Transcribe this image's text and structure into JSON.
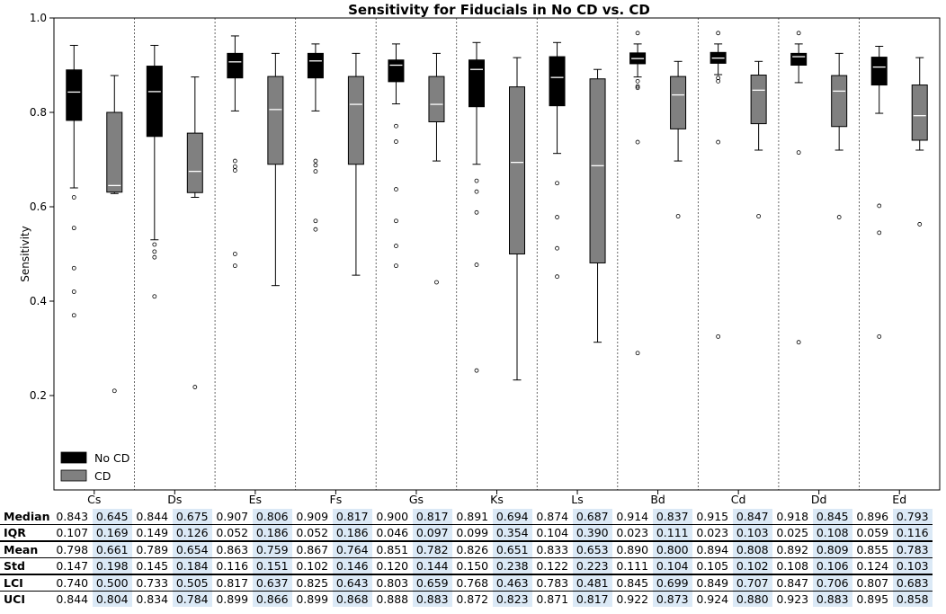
{
  "chart_data": {
    "type": "box",
    "title": "Sensitivity for Fiducials in No CD vs. CD",
    "xlabel": "",
    "ylabel": "Sensitivity",
    "ylim": [
      0.0,
      1.0
    ],
    "yticks": [
      0.2,
      0.4,
      0.6,
      0.8,
      1.0
    ],
    "grid": false,
    "legend_position": "bottom-left",
    "categories": [
      "Cs",
      "Ds",
      "Es",
      "Fs",
      "Gs",
      "Ks",
      "Ls",
      "Bd",
      "Cd",
      "Dd",
      "Ed"
    ],
    "series": [
      {
        "name": "No CD",
        "color": "#000000",
        "median_color": "#ffffff",
        "boxes": [
          {
            "q1": 0.783,
            "median": 0.843,
            "q3": 0.89,
            "whislo": 0.64,
            "whishi": 0.942,
            "fliers": [
              0.62,
              0.555,
              0.47,
              0.42,
              0.37
            ]
          },
          {
            "q1": 0.749,
            "median": 0.844,
            "q3": 0.898,
            "whislo": 0.53,
            "whishi": 0.942,
            "fliers": [
              0.52,
              0.505,
              0.493,
              0.41
            ]
          },
          {
            "q1": 0.873,
            "median": 0.907,
            "q3": 0.925,
            "whislo": 0.803,
            "whishi": 0.962,
            "fliers": [
              0.697,
              0.685,
              0.677,
              0.5,
              0.475
            ]
          },
          {
            "q1": 0.873,
            "median": 0.909,
            "q3": 0.925,
            "whislo": 0.803,
            "whishi": 0.945,
            "fliers": [
              0.697,
              0.688,
              0.675,
              0.57,
              0.552
            ]
          },
          {
            "q1": 0.865,
            "median": 0.9,
            "q3": 0.911,
            "whislo": 0.818,
            "whishi": 0.945,
            "fliers": [
              0.771,
              0.738,
              0.637,
              0.57,
              0.517,
              0.475
            ]
          },
          {
            "q1": 0.812,
            "median": 0.891,
            "q3": 0.911,
            "whislo": 0.69,
            "whishi": 0.948,
            "fliers": [
              0.655,
              0.632,
              0.588,
              0.477,
              0.253
            ]
          },
          {
            "q1": 0.814,
            "median": 0.874,
            "q3": 0.918,
            "whislo": 0.713,
            "whishi": 0.948,
            "fliers": [
              0.65,
              0.578,
              0.512,
              0.452
            ]
          },
          {
            "q1": 0.903,
            "median": 0.914,
            "q3": 0.926,
            "whislo": 0.875,
            "whishi": 0.945,
            "fliers": [
              0.968,
              0.866,
              0.855,
              0.852,
              0.737,
              0.29
            ]
          },
          {
            "q1": 0.904,
            "median": 0.915,
            "q3": 0.927,
            "whislo": 0.88,
            "whishi": 0.945,
            "fliers": [
              0.968,
              0.873,
              0.866,
              0.737,
              0.325
            ]
          },
          {
            "q1": 0.9,
            "median": 0.918,
            "q3": 0.925,
            "whislo": 0.863,
            "whishi": 0.945,
            "fliers": [
              0.968,
              0.715,
              0.313
            ]
          },
          {
            "q1": 0.858,
            "median": 0.896,
            "q3": 0.917,
            "whislo": 0.798,
            "whishi": 0.94,
            "fliers": [
              0.602,
              0.545,
              0.325
            ]
          }
        ]
      },
      {
        "name": "CD",
        "color": "#808080",
        "median_color": "#ffffff",
        "boxes": [
          {
            "q1": 0.631,
            "median": 0.645,
            "q3": 0.8,
            "whislo": 0.628,
            "whishi": 0.878,
            "fliers": [
              0.21
            ]
          },
          {
            "q1": 0.63,
            "median": 0.675,
            "q3": 0.756,
            "whislo": 0.62,
            "whishi": 0.875,
            "fliers": [
              0.218
            ]
          },
          {
            "q1": 0.69,
            "median": 0.806,
            "q3": 0.876,
            "whislo": 0.433,
            "whishi": 0.925,
            "fliers": []
          },
          {
            "q1": 0.69,
            "median": 0.817,
            "q3": 0.876,
            "whislo": 0.455,
            "whishi": 0.925,
            "fliers": []
          },
          {
            "q1": 0.78,
            "median": 0.817,
            "q3": 0.876,
            "whislo": 0.697,
            "whishi": 0.925,
            "fliers": [
              0.44
            ]
          },
          {
            "q1": 0.5,
            "median": 0.694,
            "q3": 0.854,
            "whislo": 0.233,
            "whishi": 0.916,
            "fliers": []
          },
          {
            "q1": 0.481,
            "median": 0.687,
            "q3": 0.871,
            "whislo": 0.313,
            "whishi": 0.891,
            "fliers": []
          },
          {
            "q1": 0.765,
            "median": 0.837,
            "q3": 0.876,
            "whislo": 0.697,
            "whishi": 0.908,
            "fliers": [
              0.58
            ]
          },
          {
            "q1": 0.776,
            "median": 0.847,
            "q3": 0.879,
            "whislo": 0.72,
            "whishi": 0.908,
            "fliers": [
              0.58
            ]
          },
          {
            "q1": 0.77,
            "median": 0.845,
            "q3": 0.878,
            "whislo": 0.72,
            "whishi": 0.925,
            "fliers": [
              0.578
            ]
          },
          {
            "q1": 0.741,
            "median": 0.793,
            "q3": 0.858,
            "whislo": 0.72,
            "whishi": 0.916,
            "fliers": [
              0.563
            ]
          }
        ]
      }
    ]
  },
  "stats_table": {
    "rows": [
      {
        "label": "Median",
        "values": [
          "0.843",
          "0.645",
          "0.844",
          "0.675",
          "0.907",
          "0.806",
          "0.909",
          "0.817",
          "0.900",
          "0.817",
          "0.891",
          "0.694",
          "0.874",
          "0.687",
          "0.914",
          "0.837",
          "0.915",
          "0.847",
          "0.918",
          "0.845",
          "0.896",
          "0.793"
        ]
      },
      {
        "label": "IQR",
        "values": [
          "0.107",
          "0.169",
          "0.149",
          "0.126",
          "0.052",
          "0.186",
          "0.052",
          "0.186",
          "0.046",
          "0.097",
          "0.099",
          "0.354",
          "0.104",
          "0.390",
          "0.023",
          "0.111",
          "0.023",
          "0.103",
          "0.025",
          "0.108",
          "0.059",
          "0.116"
        ]
      },
      {
        "label": "Mean",
        "values": [
          "0.798",
          "0.661",
          "0.789",
          "0.654",
          "0.863",
          "0.759",
          "0.867",
          "0.764",
          "0.851",
          "0.782",
          "0.826",
          "0.651",
          "0.833",
          "0.653",
          "0.890",
          "0.800",
          "0.894",
          "0.808",
          "0.892",
          "0.809",
          "0.855",
          "0.783"
        ]
      },
      {
        "label": "Std",
        "values": [
          "0.147",
          "0.198",
          "0.145",
          "0.184",
          "0.116",
          "0.151",
          "0.102",
          "0.146",
          "0.120",
          "0.144",
          "0.150",
          "0.238",
          "0.122",
          "0.223",
          "0.111",
          "0.104",
          "0.105",
          "0.102",
          "0.108",
          "0.106",
          "0.124",
          "0.103"
        ]
      },
      {
        "label": "LCI",
        "values": [
          "0.740",
          "0.500",
          "0.733",
          "0.505",
          "0.817",
          "0.637",
          "0.825",
          "0.643",
          "0.803",
          "0.659",
          "0.768",
          "0.463",
          "0.783",
          "0.481",
          "0.845",
          "0.699",
          "0.849",
          "0.707",
          "0.847",
          "0.706",
          "0.807",
          "0.683"
        ]
      },
      {
        "label": "UCI",
        "values": [
          "0.844",
          "0.804",
          "0.834",
          "0.784",
          "0.899",
          "0.866",
          "0.899",
          "0.868",
          "0.888",
          "0.883",
          "0.872",
          "0.823",
          "0.871",
          "0.817",
          "0.922",
          "0.873",
          "0.924",
          "0.880",
          "0.923",
          "0.883",
          "0.895",
          "0.858"
        ]
      }
    ],
    "cd_highlight_color": "#dbe9f6"
  }
}
